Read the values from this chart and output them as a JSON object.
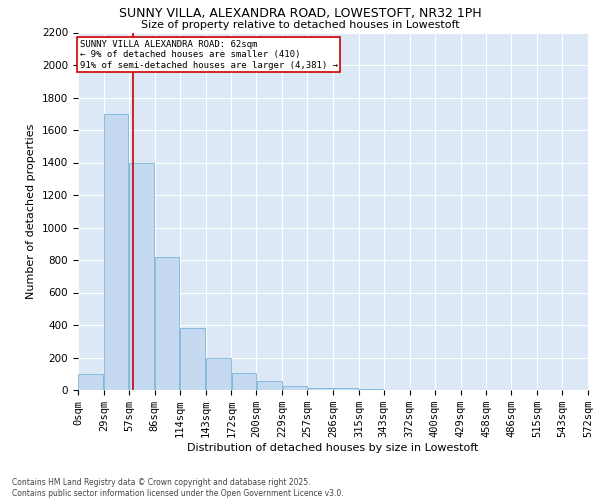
{
  "title": "SUNNY VILLA, ALEXANDRA ROAD, LOWESTOFT, NR32 1PH",
  "subtitle": "Size of property relative to detached houses in Lowestoft",
  "xlabel": "Distribution of detached houses by size in Lowestoft",
  "ylabel": "Number of detached properties",
  "bar_values": [
    100,
    1700,
    1400,
    820,
    380,
    195,
    105,
    55,
    22,
    15,
    10,
    5,
    0,
    0,
    0,
    0,
    0,
    0,
    0,
    0
  ],
  "bin_edges": [
    0,
    29,
    57,
    86,
    114,
    143,
    172,
    200,
    229,
    257,
    286,
    315,
    343,
    372,
    400,
    429,
    458,
    486,
    515,
    543,
    572
  ],
  "tick_labels": [
    "0sqm",
    "29sqm",
    "57sqm",
    "86sqm",
    "114sqm",
    "143sqm",
    "172sqm",
    "200sqm",
    "229sqm",
    "257sqm",
    "286sqm",
    "315sqm",
    "343sqm",
    "372sqm",
    "400sqm",
    "429sqm",
    "458sqm",
    "486sqm",
    "515sqm",
    "543sqm",
    "572sqm"
  ],
  "property_size": 62,
  "annotation_title": "SUNNY VILLA ALEXANDRA ROAD: 62sqm",
  "annotation_line1": "← 9% of detached houses are smaller (410)",
  "annotation_line2": "91% of semi-detached houses are larger (4,381) →",
  "bar_color": "#c5d9f0",
  "bar_edge_color": "#6aaad4",
  "vline_color": "#cc0000",
  "annotation_box_color": "#ffffff",
  "annotation_box_edge": "#cc0000",
  "background_color": "#dce8f5",
  "grid_color": "#ffffff",
  "fig_facecolor": "#ffffff",
  "ylim": [
    0,
    2200
  ],
  "yticks": [
    0,
    200,
    400,
    600,
    800,
    1000,
    1200,
    1400,
    1600,
    1800,
    2000,
    2200
  ],
  "footnote1": "Contains HM Land Registry data © Crown copyright and database right 2025.",
  "footnote2": "Contains public sector information licensed under the Open Government Licence v3.0."
}
